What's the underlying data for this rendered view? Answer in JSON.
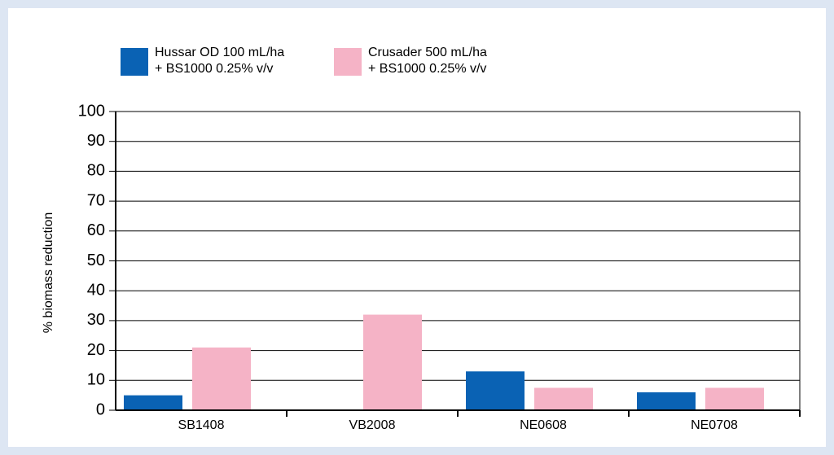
{
  "chart_data": {
    "type": "bar",
    "ylabel": "% biomass reduction",
    "categories": [
      "SB1408",
      "VB2008",
      "NE0608",
      "NE0708"
    ],
    "series": [
      {
        "name": "Hussar OD 100 mL/ha\n+ BS1000 0.25% v/v",
        "color": "#0a62b4",
        "values": [
          5,
          0,
          13,
          6
        ]
      },
      {
        "name": "Crusader 500 mL/ha\n+ BS1000 0.25% v/v",
        "color": "#f5b3c6",
        "values": [
          21,
          32,
          7.5,
          7.5
        ]
      }
    ],
    "ylim": [
      0,
      100
    ],
    "yticks": [
      0,
      10,
      20,
      30,
      40,
      50,
      60,
      70,
      80,
      90,
      100
    ],
    "grid": true
  }
}
